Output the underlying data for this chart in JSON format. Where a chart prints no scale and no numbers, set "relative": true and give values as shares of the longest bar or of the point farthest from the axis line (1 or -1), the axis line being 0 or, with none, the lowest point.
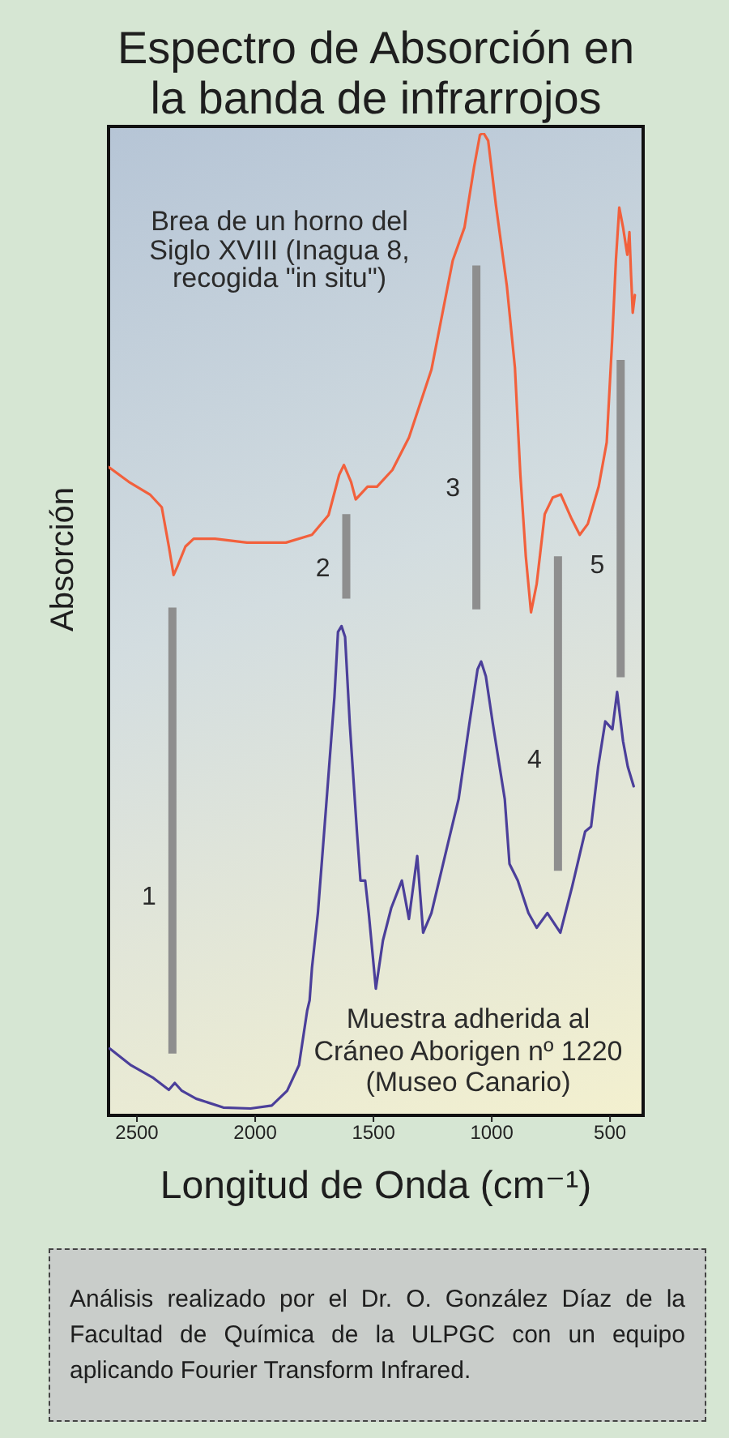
{
  "chart_data": {
    "type": "line",
    "title": "Espectro de Absorción en la banda de infrarrojos",
    "xlabel": "Longitud de Onda (cm⁻¹)",
    "ylabel": "Absorción",
    "relative": true,
    "xlim": [
      2620,
      360
    ],
    "xticks": [
      2500,
      2000,
      1500,
      1000,
      500
    ],
    "marker": "none",
    "series": [
      {
        "name": "Brea de un horno del Siglo XVIII (Inagua 8, recogida \"in situ\")",
        "color": "#f2603c",
        "x": [
          2620,
          2535,
          2445,
          2395,
          2365,
          2345,
          2330,
          2295,
          2260,
          2170,
          2035,
          1870,
          1760,
          1690,
          1645,
          1625,
          1595,
          1575,
          1525,
          1485,
          1420,
          1350,
          1255,
          1165,
          1115,
          1075,
          1050,
          1035,
          1015,
          982,
          936,
          902,
          879,
          856,
          834,
          810,
          776,
          742,
          708,
          662,
          628,
          594,
          548,
          514,
          491,
          475,
          461,
          445,
          427,
          418,
          411,
          404,
          395
        ],
        "values": [
          0.66,
          0.645,
          0.632,
          0.619,
          0.579,
          0.55,
          0.558,
          0.579,
          0.587,
          0.587,
          0.583,
          0.583,
          0.591,
          0.611,
          0.652,
          0.662,
          0.645,
          0.627,
          0.64,
          0.64,
          0.657,
          0.69,
          0.759,
          0.87,
          0.904,
          0.965,
          0.998,
          1,
          0.992,
          0.926,
          0.844,
          0.761,
          0.652,
          0.569,
          0.512,
          0.541,
          0.612,
          0.629,
          0.632,
          0.607,
          0.591,
          0.602,
          0.64,
          0.685,
          0.789,
          0.871,
          0.924,
          0.904,
          0.876,
          0.899,
          0.855,
          0.817,
          0.835
        ]
      },
      {
        "name": "Muestra adherida al Cráneo Aborigen nº 1220 (Museo Canario)",
        "color": "#4b3f9a",
        "x": [
          2615,
          2525,
          2430,
          2365,
          2340,
          2310,
          2250,
          2135,
          2020,
          1930,
          1865,
          1815,
          1780,
          1770,
          1760,
          1735,
          1700,
          1665,
          1650,
          1635,
          1620,
          1600,
          1570,
          1555,
          1535,
          1520,
          1490,
          1460,
          1425,
          1380,
          1350,
          1315,
          1290,
          1255,
          1185,
          1140,
          1095,
          1060,
          1045,
          1025,
          995,
          945,
          925,
          890,
          845,
          810,
          765,
          710,
          660,
          605,
          580,
          550,
          520,
          490,
          470,
          445,
          425,
          400
        ],
        "values": [
          0.068,
          0.051,
          0.038,
          0.026,
          0.033,
          0.025,
          0.017,
          0.008,
          0.007,
          0.01,
          0.025,
          0.051,
          0.107,
          0.117,
          0.15,
          0.206,
          0.315,
          0.426,
          0.492,
          0.498,
          0.487,
          0.398,
          0.289,
          0.239,
          0.239,
          0.206,
          0.129,
          0.178,
          0.211,
          0.239,
          0.2,
          0.264,
          0.186,
          0.206,
          0.277,
          0.322,
          0.398,
          0.454,
          0.462,
          0.447,
          0.398,
          0.322,
          0.256,
          0.239,
          0.206,
          0.191,
          0.206,
          0.186,
          0.233,
          0.289,
          0.294,
          0.355,
          0.401,
          0.393,
          0.431,
          0.381,
          0.355,
          0.335
        ]
      },
      {
        "name": "1",
        "color": "#8e8e8e",
        "x": [
          2350,
          2350
        ],
        "values": [
          0.063,
          0.517
        ]
      },
      {
        "name": "2",
        "color": "#8e8e8e",
        "x": [
          1615,
          1615
        ],
        "values": [
          0.526,
          0.612
        ]
      },
      {
        "name": "3",
        "color": "#8e8e8e",
        "x": [
          1065,
          1065
        ],
        "values": [
          0.515,
          0.865
        ]
      },
      {
        "name": "4",
        "color": "#8e8e8e",
        "x": [
          720,
          720
        ],
        "values": [
          0.249,
          0.569
        ]
      },
      {
        "name": "5",
        "color": "#8e8e8e",
        "x": [
          455,
          455
        ],
        "values": [
          0.446,
          0.769
        ]
      }
    ],
    "annotations": [
      "Análisis realizado por el Dr. O. González Díaz de la Facultad de Química de la ULPGC con un equipo aplicando Fourier Transform Infrared."
    ]
  }
}
